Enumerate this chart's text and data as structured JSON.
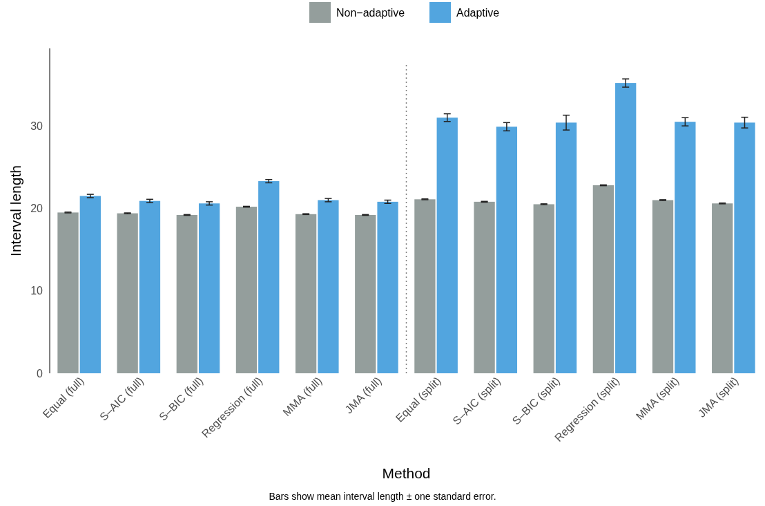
{
  "chart_data": {
    "type": "bar",
    "xlabel": "Method",
    "ylabel": "Interval length",
    "categories": [
      "Equal (full)",
      "S–AIC (full)",
      "S–BIC (full)",
      "Regression (full)",
      "MMA (full)",
      "JMA (full)",
      "Equal (split)",
      "S–AIC (split)",
      "S–BIC (split)",
      "Regression (split)",
      "MMA (split)",
      "JMA (split)"
    ],
    "series": [
      {
        "name": "Non−adaptive",
        "color": "#949e9c",
        "values": [
          19.5,
          19.4,
          19.2,
          20.2,
          19.3,
          19.2,
          21.1,
          20.8,
          20.5,
          22.8,
          21.0,
          20.6
        ],
        "errors": [
          0.05,
          0.05,
          0.05,
          0.05,
          0.05,
          0.05,
          0.05,
          0.05,
          0.05,
          0.05,
          0.05,
          0.05
        ]
      },
      {
        "name": "Adaptive",
        "color": "#52a5df",
        "values": [
          21.5,
          20.9,
          20.6,
          23.3,
          21.0,
          20.8,
          31.0,
          29.9,
          30.4,
          35.2,
          30.5,
          30.4
        ],
        "errors": [
          0.2,
          0.2,
          0.2,
          0.2,
          0.2,
          0.2,
          0.47,
          0.5,
          0.9,
          0.5,
          0.5,
          0.65
        ]
      }
    ],
    "ylim": [
      0,
      39.4
    ],
    "yticks": [
      0,
      10,
      20,
      30
    ],
    "grid": false,
    "legend": "top",
    "annotations": [
      "Bars show mean interval length ± one standard error."
    ]
  }
}
